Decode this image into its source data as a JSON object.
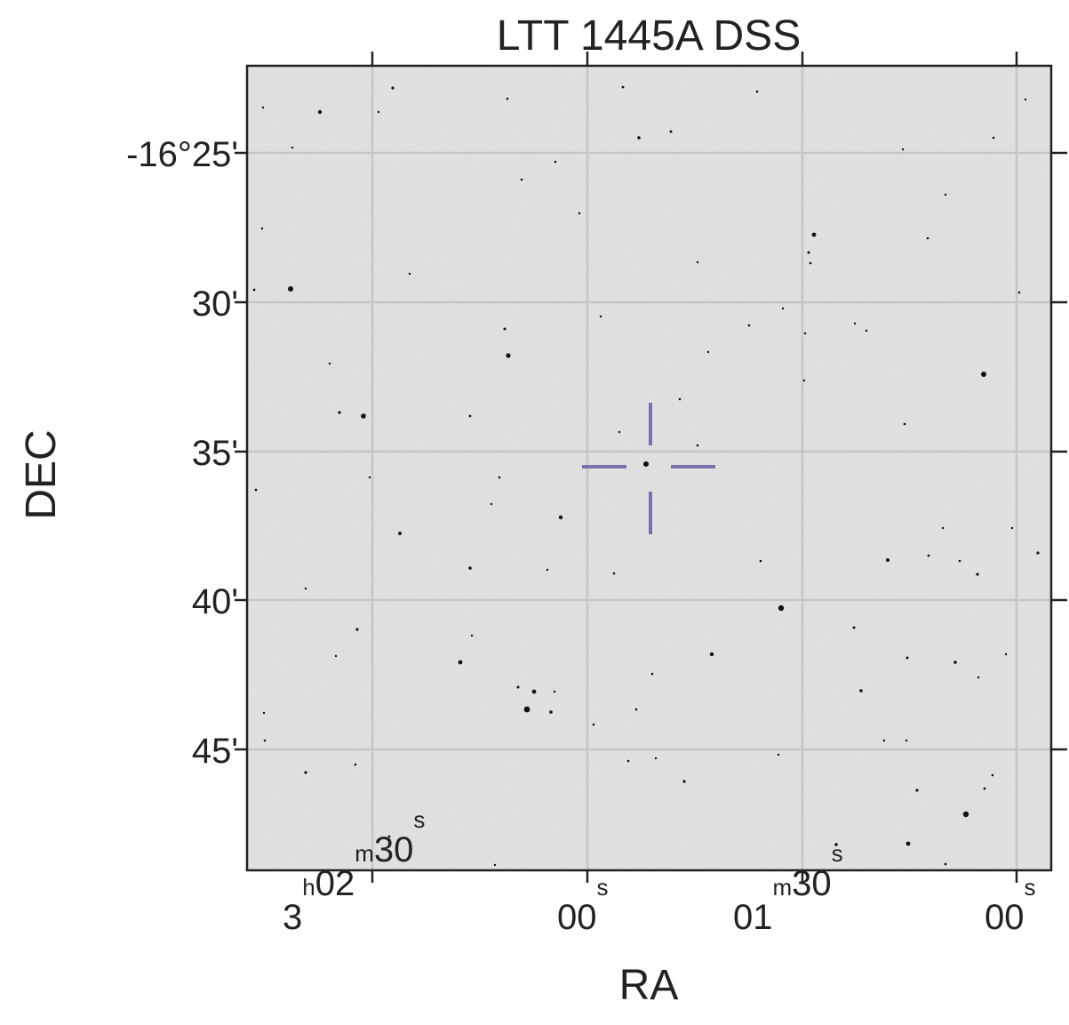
{
  "title": "LTT 1445A DSS",
  "axes": {
    "xlabel": "RA",
    "ylabel": "DEC"
  },
  "dec_ticks": [
    {
      "label": "-16°25'"
    },
    {
      "label": "30'"
    },
    {
      "label": "35'"
    },
    {
      "label": "40'"
    },
    {
      "label": "45'"
    }
  ],
  "ra_ticks": [
    {
      "parts": [
        {
          "text": "3",
          "sup": false
        },
        {
          "text": "h",
          "sup": true
        },
        {
          "text": "02",
          "sup": false
        },
        {
          "text": "m",
          "sup": true
        },
        {
          "text": "30",
          "sup": false
        },
        {
          "text": "s",
          "sup": true
        }
      ]
    },
    {
      "parts": [
        {
          "text": "00",
          "sup": false
        },
        {
          "text": "s",
          "sup": true
        }
      ]
    },
    {
      "parts": [
        {
          "text": "01",
          "sup": false
        },
        {
          "text": "m",
          "sup": true
        },
        {
          "text": "30",
          "sup": false
        },
        {
          "text": "s",
          "sup": true
        }
      ]
    },
    {
      "parts": [
        {
          "text": "00",
          "sup": false
        },
        {
          "text": "s",
          "sup": true
        }
      ]
    }
  ],
  "grid": true,
  "colors": {
    "background": "#e3e3e3",
    "grid": "#c6c6c6",
    "frame": "#222222",
    "stars": "#111111",
    "marker": "#7b6fb0"
  },
  "image": {
    "kind": "DSS sky survey star field",
    "marker": "crosshair-reticle"
  }
}
